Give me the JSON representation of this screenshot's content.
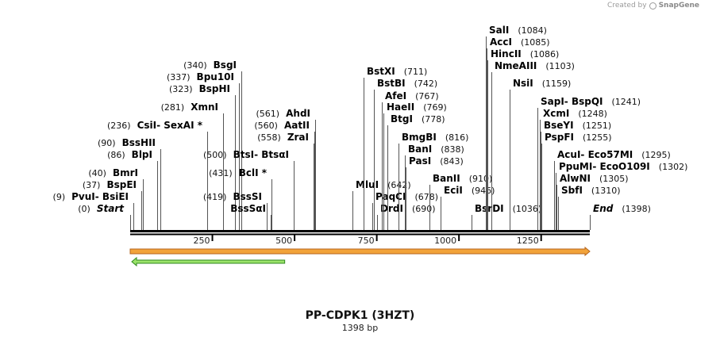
{
  "credit": {
    "prefix": "Created by",
    "brand": "SnapGene"
  },
  "plasmid": {
    "name": "PP-CDPK1 (3HZT)",
    "length_label": "1398 bp",
    "length": 1398
  },
  "ruler": {
    "ticks": [
      "250",
      "500",
      "750",
      "1000",
      "1250"
    ]
  },
  "sites": [
    {
      "pos": "(0)",
      "name": "Start",
      "italic": true
    },
    {
      "pos": "(9)",
      "name": "PvuI",
      "alt": "BsiEI"
    },
    {
      "pos": "(37)",
      "name": "BspEI"
    },
    {
      "pos": "(40)",
      "name": "BmrI"
    },
    {
      "pos": "(86)",
      "name": "BlpI"
    },
    {
      "pos": "(90)",
      "name": "BssHII"
    },
    {
      "pos": "(236)",
      "name": "CsiI",
      "alt": "SexAI *"
    },
    {
      "pos": "(281)",
      "name": "XmnI"
    },
    {
      "pos": "(323)",
      "name": "BspHI"
    },
    {
      "pos": "(337)",
      "name": "Bpu10I"
    },
    {
      "pos": "(340)",
      "name": "BsgI"
    },
    {
      "pos": "(419)",
      "name": "BssSI"
    },
    {
      "pos": "(431)",
      "name": "BclI *"
    },
    {
      "pos": "(500)",
      "name": "BtsI",
      "alt": "BtsαI"
    },
    {
      "name": "BssSαI"
    },
    {
      "pos": "(558)",
      "name": "ZraI"
    },
    {
      "pos": "(560)",
      "name": "AatII"
    },
    {
      "pos": "(561)",
      "name": "AhdI"
    },
    {
      "name": "MluI",
      "pos": "(642)"
    },
    {
      "name": "PaqCI",
      "pos": "(678)"
    },
    {
      "name": "DrdI",
      "pos": "(690)"
    },
    {
      "name": "BstXI",
      "pos": "(711)"
    },
    {
      "name": "BstBI",
      "pos": "(742)"
    },
    {
      "name": "AfeI",
      "pos": "(767)"
    },
    {
      "name": "HaeII",
      "pos": "(769)"
    },
    {
      "name": "BtgI",
      "pos": "(778)"
    },
    {
      "name": "BmgBI",
      "pos": "(816)"
    },
    {
      "name": "BanI",
      "pos": "(838)"
    },
    {
      "name": "PasI",
      "pos": "(843)"
    },
    {
      "name": "BanII",
      "pos": "(910)"
    },
    {
      "name": "EciI",
      "pos": "(946)"
    },
    {
      "name": "BsrDI",
      "pos": "(1036)"
    },
    {
      "name": "SalI",
      "pos": "(1084)"
    },
    {
      "name": "AccI",
      "pos": "(1085)"
    },
    {
      "name": "HincII",
      "pos": "(1086)"
    },
    {
      "name": "NmeAIII",
      "pos": "(1103)"
    },
    {
      "name": "NsiI",
      "pos": "(1159)"
    },
    {
      "name": "SapI",
      "alt": "BspQI",
      "pos": "(1241)"
    },
    {
      "name": "XcmI",
      "pos": "(1248)"
    },
    {
      "name": "BseYI",
      "pos": "(1251)"
    },
    {
      "name": "PspFI",
      "pos": "(1255)"
    },
    {
      "name": "AcuI",
      "alt": "Eco57MI",
      "pos": "(1295)"
    },
    {
      "name": "PpuMI",
      "alt": "EcoO109I",
      "pos": "(1302)"
    },
    {
      "name": "AlwNI",
      "pos": "(1305)"
    },
    {
      "name": "SbfI",
      "pos": "(1310)"
    },
    {
      "name": "End",
      "italic": true,
      "pos": "(1398)"
    }
  ],
  "features": [
    {
      "name": "forward-feature",
      "color": "#f2a33a",
      "stroke": "#b5651d",
      "direction": "forward",
      "start": 0,
      "end": 1398
    },
    {
      "name": "reverse-feature",
      "color": "#9be36a",
      "stroke": "#2f8a1f",
      "direction": "reverse",
      "start": 0,
      "end": 470
    }
  ]
}
